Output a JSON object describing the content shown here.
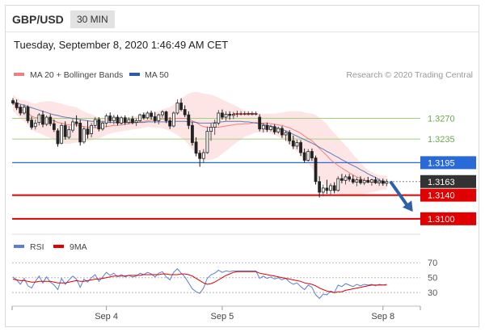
{
  "header": {
    "symbol": "GBP/USD",
    "timeframe": "30 MIN"
  },
  "datetime": "Tuesday, September 8, 2020 1:46:49 AM CET",
  "legend": {
    "ma20_label": "MA 20 + Bollinger Bands",
    "ma50_label": "MA 50",
    "ma20_color": "#f08080",
    "ma50_color": "#2f5aa8",
    "credit": "Research © 2020 Trading Central"
  },
  "levels": [
    {
      "value": 1.327,
      "label": "1.3270",
      "style": "thin-green"
    },
    {
      "value": 1.3235,
      "label": "1.3235",
      "style": "thin-green"
    },
    {
      "value": 1.3195,
      "label": "1.3195",
      "style": "blue-tag"
    },
    {
      "value": 1.3163,
      "label": "1.3163",
      "style": "dark-tag"
    },
    {
      "value": 1.314,
      "label": "1.3140",
      "style": "red-tag"
    },
    {
      "value": 1.31,
      "label": "1.3100",
      "style": "red-tag"
    }
  ],
  "rsi_legend": {
    "rsi_label": "RSI",
    "ma_label": "9MA",
    "rsi_color": "#5b7fd4",
    "ma_color": "#e00000"
  },
  "rsi_levels": [
    {
      "value": 70,
      "label": "70"
    },
    {
      "value": 50,
      "label": "50"
    },
    {
      "value": 30,
      "label": "30"
    }
  ],
  "x_axis": [
    {
      "label": "Sep 4"
    },
    {
      "label": "Sep 5"
    },
    {
      "label": "Sep 8"
    }
  ],
  "colors": {
    "green_line": "#9fd27a",
    "green_text": "#6aa84f",
    "blue_level": "#2a6ad8",
    "red_level": "#e00000",
    "dark_tag": "#333333",
    "band": "#fde0e0",
    "arrow": "#2f5fa8"
  },
  "chart_data": [
    {
      "type": "candlestick",
      "title": "GBP/USD 30 MIN",
      "ylim": [
        1.3082,
        1.3335
      ],
      "x_range": [
        0,
        109
      ],
      "x_ticks": [
        {
          "x": 25,
          "label": "Sep 4"
        },
        {
          "x": 56,
          "label": "Sep 5"
        },
        {
          "x": 99,
          "label": "Sep 8"
        }
      ],
      "candles": [
        [
          1.33,
          1.3304,
          1.3293,
          1.3296
        ],
        [
          1.3296,
          1.3302,
          1.3284,
          1.3288
        ],
        [
          1.3289,
          1.3293,
          1.3275,
          1.3279
        ],
        [
          1.3279,
          1.3294,
          1.3276,
          1.3289
        ],
        [
          1.3289,
          1.3292,
          1.3262,
          1.3266
        ],
        [
          1.3267,
          1.3273,
          1.3251,
          1.3255
        ],
        [
          1.3256,
          1.3268,
          1.3251,
          1.3262
        ],
        [
          1.3263,
          1.3279,
          1.3258,
          1.3276
        ],
        [
          1.3276,
          1.3283,
          1.3255,
          1.326
        ],
        [
          1.326,
          1.3275,
          1.3257,
          1.3272
        ],
        [
          1.3272,
          1.3277,
          1.3257,
          1.3261
        ],
        [
          1.3261,
          1.3268,
          1.3247,
          1.3251
        ],
        [
          1.3249,
          1.3253,
          1.3222,
          1.3227
        ],
        [
          1.3228,
          1.3262,
          1.3226,
          1.3258
        ],
        [
          1.3258,
          1.3265,
          1.3234,
          1.3239
        ],
        [
          1.3238,
          1.3257,
          1.3235,
          1.3251
        ],
        [
          1.325,
          1.3269,
          1.3246,
          1.3264
        ],
        [
          1.3264,
          1.3275,
          1.3256,
          1.3261
        ],
        [
          1.3262,
          1.3268,
          1.3224,
          1.323
        ],
        [
          1.323,
          1.3256,
          1.3227,
          1.3252
        ],
        [
          1.3252,
          1.3266,
          1.3236,
          1.3243
        ],
        [
          1.3244,
          1.3262,
          1.3238,
          1.3258
        ],
        [
          1.3258,
          1.3272,
          1.3254,
          1.3268
        ],
        [
          1.3268,
          1.3272,
          1.3248,
          1.3252
        ],
        [
          1.3252,
          1.3266,
          1.3249,
          1.3262
        ],
        [
          1.3262,
          1.3278,
          1.3255,
          1.3274
        ],
        [
          1.3274,
          1.328,
          1.3262,
          1.3266
        ],
        [
          1.3266,
          1.3276,
          1.326,
          1.3272
        ],
        [
          1.3272,
          1.3276,
          1.3258,
          1.3262
        ],
        [
          1.3262,
          1.3274,
          1.3259,
          1.3271
        ],
        [
          1.3271,
          1.3275,
          1.3259,
          1.3263
        ],
        [
          1.3263,
          1.3272,
          1.326,
          1.3268
        ],
        [
          1.3269,
          1.3274,
          1.326,
          1.3263
        ],
        [
          1.3263,
          1.327,
          1.3257,
          1.3266
        ],
        [
          1.3266,
          1.3278,
          1.3264,
          1.3276
        ],
        [
          1.3276,
          1.328,
          1.3268,
          1.3271
        ],
        [
          1.3271,
          1.3282,
          1.3268,
          1.3279
        ],
        [
          1.3279,
          1.3283,
          1.3268,
          1.3273
        ],
        [
          1.3273,
          1.3281,
          1.3262,
          1.3266
        ],
        [
          1.3266,
          1.3278,
          1.326,
          1.3276
        ],
        [
          1.3276,
          1.3284,
          1.3271,
          1.3281
        ],
        [
          1.3281,
          1.3283,
          1.3262,
          1.3266
        ],
        [
          1.3266,
          1.3272,
          1.3252,
          1.3257
        ],
        [
          1.3257,
          1.3282,
          1.3255,
          1.3279
        ],
        [
          1.3279,
          1.3302,
          1.3276,
          1.3296
        ],
        [
          1.3296,
          1.3304,
          1.3282,
          1.3285
        ],
        [
          1.3285,
          1.3292,
          1.3272,
          1.3276
        ],
        [
          1.3276,
          1.3282,
          1.3252,
          1.3258
        ],
        [
          1.3258,
          1.3264,
          1.3224,
          1.3229
        ],
        [
          1.323,
          1.3238,
          1.3206,
          1.3211
        ],
        [
          1.3211,
          1.3216,
          1.3188,
          1.3202
        ],
        [
          1.3202,
          1.3218,
          1.3194,
          1.3212
        ],
        [
          1.3212,
          1.3256,
          1.321,
          1.3248
        ],
        [
          1.3248,
          1.3262,
          1.3232,
          1.3255
        ],
        [
          1.3255,
          1.3268,
          1.3242,
          1.3262
        ],
        [
          1.3262,
          1.3284,
          1.3258,
          1.3279
        ],
        [
          1.3279,
          1.3285,
          1.3268,
          1.3272
        ],
        [
          1.3272,
          1.3282,
          1.3266,
          1.3277
        ],
        [
          1.3277,
          1.3282,
          1.3268,
          1.3275
        ],
        [
          1.3275,
          1.3281,
          1.3269,
          1.3277
        ],
        [
          1.3277,
          1.3283,
          1.3272,
          1.3278
        ],
        [
          1.3278,
          1.3282,
          1.3275,
          1.3278
        ],
        [
          1.3278,
          1.3282,
          1.3275,
          1.3278
        ],
        [
          1.3278,
          1.3282,
          1.3275,
          1.3278
        ],
        [
          1.3278,
          1.3282,
          1.3275,
          1.3278
        ],
        [
          1.3278,
          1.3282,
          1.3275,
          1.3278
        ],
        [
          1.3272,
          1.3277,
          1.3248,
          1.3252
        ],
        [
          1.3252,
          1.3262,
          1.3246,
          1.3258
        ],
        [
          1.3258,
          1.3263,
          1.3247,
          1.3251
        ],
        [
          1.3251,
          1.3259,
          1.3248,
          1.3256
        ],
        [
          1.3256,
          1.326,
          1.3243,
          1.3247
        ],
        [
          1.3247,
          1.3256,
          1.3244,
          1.3253
        ],
        [
          1.3253,
          1.3257,
          1.3237,
          1.3242
        ],
        [
          1.3242,
          1.3249,
          1.3232,
          1.3246
        ],
        [
          1.3246,
          1.325,
          1.3226,
          1.3232
        ],
        [
          1.3232,
          1.3241,
          1.3218,
          1.3223
        ],
        [
          1.3223,
          1.3234,
          1.3218,
          1.3229
        ],
        [
          1.3229,
          1.3233,
          1.3206,
          1.3212
        ],
        [
          1.3212,
          1.3219,
          1.3195,
          1.3199
        ],
        [
          1.3199,
          1.3218,
          1.3197,
          1.3214
        ],
        [
          1.3214,
          1.3219,
          1.3198,
          1.3203
        ],
        [
          1.3203,
          1.3207,
          1.3158,
          1.3163
        ],
        [
          1.3163,
          1.3172,
          1.3136,
          1.3145
        ],
        [
          1.3145,
          1.3158,
          1.3138,
          1.3152
        ],
        [
          1.3152,
          1.3166,
          1.3142,
          1.3148
        ],
        [
          1.3148,
          1.316,
          1.3141,
          1.3156
        ],
        [
          1.3156,
          1.3162,
          1.3143,
          1.3148
        ],
        [
          1.3148,
          1.3172,
          1.3146,
          1.3168
        ],
        [
          1.3168,
          1.3176,
          1.316,
          1.3165
        ],
        [
          1.3165,
          1.3175,
          1.3158,
          1.3171
        ],
        [
          1.3171,
          1.3176,
          1.3163,
          1.3167
        ],
        [
          1.3167,
          1.3174,
          1.3159,
          1.3162
        ],
        [
          1.3162,
          1.317,
          1.3155,
          1.3166
        ],
        [
          1.3166,
          1.3172,
          1.3158,
          1.3161
        ],
        [
          1.3161,
          1.3169,
          1.3157,
          1.3165
        ],
        [
          1.3165,
          1.3171,
          1.316,
          1.3162
        ],
        [
          1.3162,
          1.3168,
          1.3156,
          1.3166
        ],
        [
          1.3166,
          1.3171,
          1.3159,
          1.3161
        ],
        [
          1.3161,
          1.3168,
          1.3156,
          1.3164
        ],
        [
          1.3164,
          1.3168,
          1.3156,
          1.316
        ],
        [
          1.316,
          1.3167,
          1.3155,
          1.3163
        ]
      ],
      "ma20": [
        1.3296,
        1.3291,
        1.3285,
        1.3283,
        1.3279,
        1.3274,
        1.3271,
        1.3271,
        1.327,
        1.3269,
        1.3268,
        1.3266,
        1.3263,
        1.3262,
        1.326,
        1.3259,
        1.3259,
        1.3259,
        1.3257,
        1.3256,
        1.3255,
        1.3255,
        1.3254,
        1.3254,
        1.3255,
        1.3256,
        1.3257,
        1.3258,
        1.3258,
        1.3259,
        1.326,
        1.3261,
        1.3262,
        1.3263,
        1.3264,
        1.3265,
        1.3266,
        1.3267,
        1.3267,
        1.3268,
        1.3269,
        1.3269,
        1.3269,
        1.3269,
        1.327,
        1.327,
        1.327,
        1.3269,
        1.3266,
        1.3263,
        1.3259,
        1.3256,
        1.3255,
        1.3255,
        1.3255,
        1.3255,
        1.3256,
        1.3257,
        1.3258,
        1.3259,
        1.326,
        1.326,
        1.3261,
        1.3261,
        1.3262,
        1.3263,
        1.3262,
        1.3262,
        1.3262,
        1.3261,
        1.326,
        1.3259,
        1.3258,
        1.3256,
        1.3254,
        1.3251,
        1.3248,
        1.3245,
        1.324,
        1.3236,
        1.3232,
        1.3226,
        1.3219,
        1.3213,
        1.3207,
        1.32,
        1.3195,
        1.319,
        1.3186,
        1.3182,
        1.3178,
        1.3174,
        1.3171,
        1.3168,
        1.3165,
        1.3163,
        1.3162,
        1.3161,
        1.3161,
        1.3161,
        1.3161
      ],
      "bollinger_halfwidth": [
        0.0014,
        0.0014,
        0.0016,
        0.0018,
        0.002,
        0.0022,
        0.0024,
        0.0026,
        0.0028,
        0.003,
        0.0031,
        0.0032,
        0.0033,
        0.0033,
        0.0033,
        0.0032,
        0.0031,
        0.003,
        0.0028,
        0.0026,
        0.0024,
        0.0022,
        0.002,
        0.0018,
        0.0016,
        0.0014,
        0.0013,
        0.0012,
        0.0011,
        0.0011,
        0.0011,
        0.0011,
        0.0011,
        0.0011,
        0.0011,
        0.0011,
        0.0011,
        0.0012,
        0.0013,
        0.0014,
        0.0016,
        0.0018,
        0.002,
        0.0024,
        0.0028,
        0.0033,
        0.0038,
        0.0043,
        0.0048,
        0.0052,
        0.0055,
        0.0056,
        0.0056,
        0.0055,
        0.0053,
        0.005,
        0.0046,
        0.0042,
        0.0038,
        0.0034,
        0.003,
        0.0026,
        0.0022,
        0.002,
        0.0018,
        0.0017,
        0.0016,
        0.0016,
        0.0016,
        0.0017,
        0.0018,
        0.002,
        0.0022,
        0.0025,
        0.0028,
        0.0031,
        0.0034,
        0.0037,
        0.004,
        0.0043,
        0.0046,
        0.005,
        0.0052,
        0.0053,
        0.0053,
        0.0052,
        0.005,
        0.0048,
        0.0045,
        0.0042,
        0.0039,
        0.0035,
        0.0031,
        0.0027,
        0.0023,
        0.002,
        0.0017,
        0.0015,
        0.0013,
        0.0012,
        0.0012
      ],
      "ma50": [
        1.3298,
        1.3296,
        1.3294,
        1.3292,
        1.329,
        1.3288,
        1.3286,
        1.3284,
        1.3282,
        1.328,
        1.3278,
        1.3276,
        1.3275,
        1.3273,
        1.3272,
        1.3271,
        1.327,
        1.3269,
        1.3268,
        1.3267,
        1.3266,
        1.3265,
        1.3265,
        1.3264,
        1.3264,
        1.3264,
        1.3263,
        1.3263,
        1.3263,
        1.3263,
        1.3263,
        1.3263,
        1.3263,
        1.3263,
        1.3263,
        1.3263,
        1.3264,
        1.3264,
        1.3264,
        1.3264,
        1.3264,
        1.3264,
        1.3264,
        1.3265,
        1.3265,
        1.3265,
        1.3265,
        1.3264,
        1.3264,
        1.3263,
        1.3262,
        1.3262,
        1.3262,
        1.3262,
        1.3263,
        1.3264,
        1.3264,
        1.3265,
        1.3265,
        1.3265,
        1.3265,
        1.3265,
        1.3264,
        1.3264,
        1.3263,
        1.3262,
        1.3261,
        1.326,
        1.3258,
        1.3257,
        1.3255,
        1.3253,
        1.3251,
        1.3249,
        1.3246,
        1.3243,
        1.324,
        1.3237,
        1.3234,
        1.3231,
        1.3228,
        1.3225,
        1.3221,
        1.3218,
        1.3214,
        1.3211,
        1.3207,
        1.3204,
        1.32,
        1.3197,
        1.3193,
        1.319,
        1.3187,
        1.3183,
        1.318,
        1.3176,
        1.3173,
        1.317,
        1.3166,
        1.3163,
        1.3161
      ],
      "forecast_arrow": {
        "from": {
          "x": 101,
          "y": 1.3163
        },
        "to": {
          "x": 107,
          "y": 1.3112
        }
      }
    },
    {
      "type": "line",
      "title": "RSI",
      "ylim": [
        15,
        80
      ],
      "x_range": [
        0,
        109
      ],
      "series": [
        {
          "name": "RSI",
          "color": "#5b7fd4",
          "values": [
            51,
            47,
            41,
            49,
            39,
            36,
            45,
            52,
            43,
            51,
            44,
            40,
            34,
            49,
            41,
            47,
            52,
            48,
            37,
            48,
            44,
            50,
            54,
            45,
            51,
            57,
            53,
            56,
            51,
            54,
            51,
            53,
            51,
            52,
            56,
            54,
            57,
            55,
            51,
            56,
            58,
            51,
            47,
            57,
            62,
            56,
            51,
            43,
            35,
            31,
            29,
            36,
            49,
            54,
            56,
            60,
            57,
            59,
            58,
            59,
            59,
            59,
            59,
            59,
            59,
            59,
            49,
            52,
            49,
            51,
            48,
            50,
            47,
            49,
            44,
            41,
            43,
            38,
            34,
            40,
            37,
            27,
            22,
            28,
            27,
            32,
            30,
            40,
            38,
            42,
            40,
            38,
            41,
            39,
            41,
            40,
            41,
            39,
            41,
            40,
            41
          ]
        },
        {
          "name": "9MA",
          "color": "#e00000",
          "values": [
            48,
            47,
            46,
            46,
            45,
            44,
            44,
            45,
            45,
            45,
            45,
            44,
            43,
            43,
            43,
            44,
            45,
            46,
            45,
            45,
            46,
            47,
            48,
            48,
            49,
            50,
            51,
            52,
            52,
            52,
            52,
            53,
            53,
            53,
            53,
            54,
            54,
            54,
            54,
            54,
            55,
            55,
            54,
            54,
            54,
            55,
            55,
            54,
            52,
            49,
            46,
            43,
            41,
            42,
            44,
            47,
            50,
            53,
            55,
            57,
            58,
            58,
            58,
            58,
            58,
            58,
            56,
            55,
            54,
            53,
            52,
            51,
            50,
            49,
            48,
            47,
            46,
            45,
            43,
            42,
            41,
            39,
            36,
            34,
            32,
            31,
            30,
            31,
            31,
            33,
            34,
            35,
            36,
            37,
            38,
            39,
            40,
            40,
            40,
            40,
            40
          ]
        }
      ]
    }
  ]
}
